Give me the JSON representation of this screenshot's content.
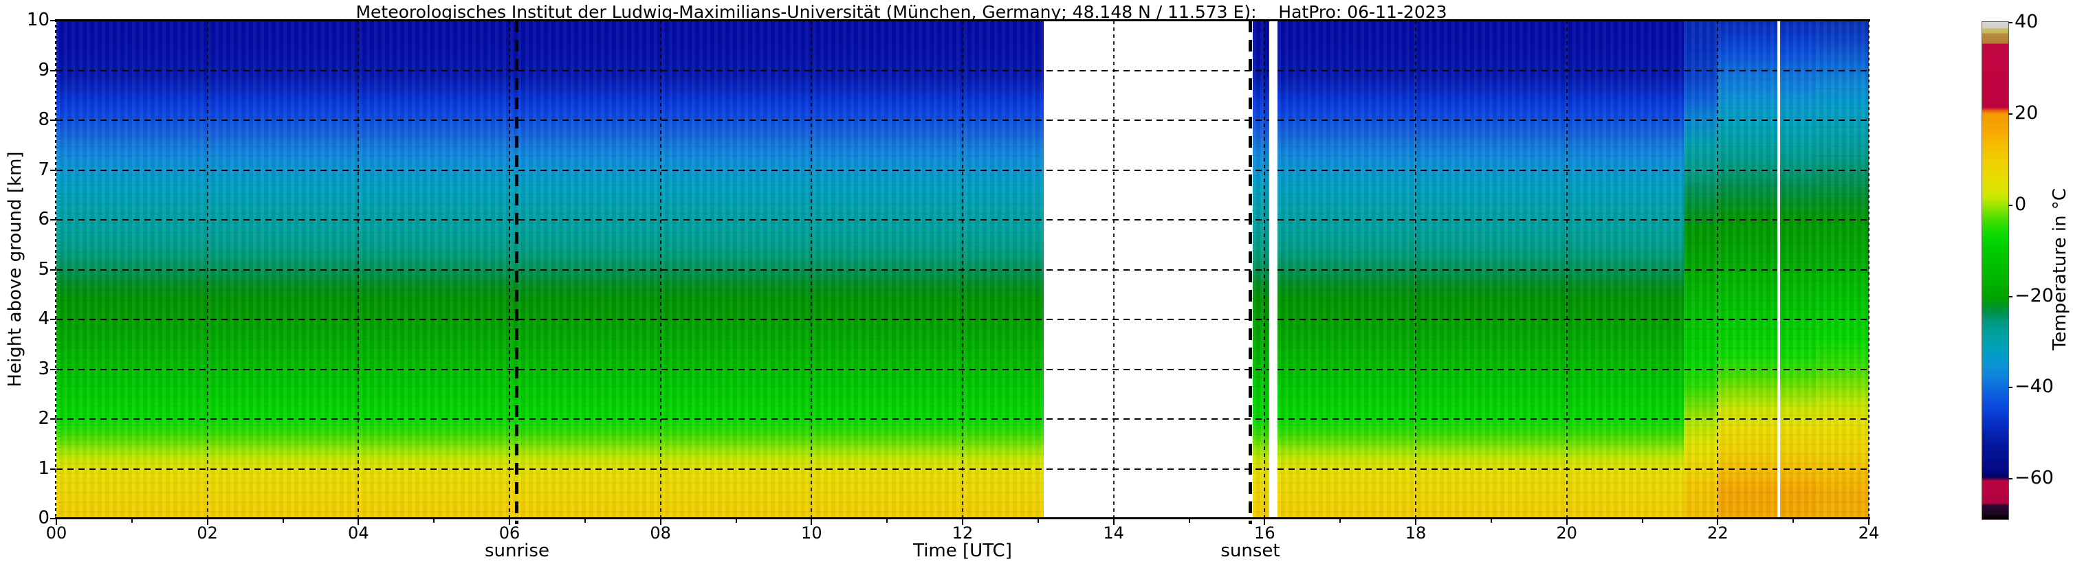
{
  "figure": {
    "title": "Meteorologisches Institut der Ludwig-Maximilians-Universität (München, Germany; 48.148 N / 11.573 E):    HatPro: 06-11-2023"
  },
  "x_axis": {
    "label": "Time [UTC]",
    "tick_labels": [
      "00",
      "02",
      "04",
      "06",
      "08",
      "10",
      "12",
      "14",
      "16",
      "18",
      "20",
      "22",
      "24"
    ],
    "tick_hours": [
      0,
      2,
      4,
      6,
      8,
      10,
      12,
      14,
      16,
      18,
      20,
      22,
      24
    ],
    "minor_tick_hours": [
      1,
      3,
      5,
      7,
      9,
      11,
      13,
      15,
      17,
      19,
      21,
      23
    ],
    "annotations": [
      {
        "label": "sunrise",
        "hour": 6.1
      },
      {
        "label": "sunset",
        "hour": 15.81
      }
    ]
  },
  "y_axis": {
    "label": "Height above ground [km]",
    "tick_labels": [
      "0",
      "1",
      "2",
      "3",
      "4",
      "5",
      "6",
      "7",
      "8",
      "9",
      "10"
    ],
    "tick_km": [
      0,
      1,
      2,
      3,
      4,
      5,
      6,
      7,
      8,
      9,
      10
    ]
  },
  "colorbar": {
    "label": "Temperature in  °C",
    "tick_labels": [
      "40",
      "20",
      "0",
      "−20",
      "−40",
      "−60"
    ],
    "tick_values": [
      40,
      20,
      0,
      -20,
      -40,
      -60
    ],
    "value_range_c": [
      -68.7,
      40.3
    ],
    "stops": [
      [
        40.3,
        "#D5D5D5"
      ],
      [
        39.0,
        "#D0D0CF"
      ],
      [
        38.8,
        "#C9C163"
      ],
      [
        37.9,
        "#C3BA5C"
      ],
      [
        37.7,
        "#BA8B3E"
      ],
      [
        35.7,
        "#B37F36"
      ],
      [
        35.4,
        "#C00742"
      ],
      [
        21.6,
        "#BD0340"
      ],
      [
        20.9,
        "#E85A10"
      ],
      [
        20.2,
        "#F59900"
      ],
      [
        15.5,
        "#F6AC00"
      ],
      [
        14.0,
        "#F5B900"
      ],
      [
        9.5,
        "#F0D000"
      ],
      [
        6.0,
        "#E9DC00"
      ],
      [
        3.5,
        "#DCE400"
      ],
      [
        1.5,
        "#C0E800"
      ],
      [
        -0.5,
        "#8CE300"
      ],
      [
        -2.5,
        "#55DF00"
      ],
      [
        -4.5,
        "#27DC00"
      ],
      [
        -7.0,
        "#05D900"
      ],
      [
        -9.0,
        "#00CE00"
      ],
      [
        -13.0,
        "#00C000"
      ],
      [
        -17.0,
        "#00B000"
      ],
      [
        -20.5,
        "#00A000"
      ],
      [
        -22.0,
        "#009627"
      ],
      [
        -23.5,
        "#00924E"
      ],
      [
        -25.0,
        "#009677"
      ],
      [
        -27.0,
        "#009D93"
      ],
      [
        -29.0,
        "#00A1A6"
      ],
      [
        -31.0,
        "#00A0B8"
      ],
      [
        -33.0,
        "#009CCA"
      ],
      [
        -35.0,
        "#0C92D6"
      ],
      [
        -37.5,
        "#0E82DC"
      ],
      [
        -40.0,
        "#0D6BDE"
      ],
      [
        -42.5,
        "#0B54E0"
      ],
      [
        -45.0,
        "#0941DA"
      ],
      [
        -47.5,
        "#0730C8"
      ],
      [
        -50.0,
        "#0522B0"
      ],
      [
        -53.0,
        "#04169A"
      ],
      [
        -56.0,
        "#030D8C"
      ],
      [
        -58.5,
        "#020780"
      ],
      [
        -59.5,
        "#03045E"
      ],
      [
        -60.3,
        "#BC0441"
      ],
      [
        -65.2,
        "#AF0340"
      ],
      [
        -65.6,
        "#2B0831"
      ],
      [
        -67.5,
        "#1E0624"
      ],
      [
        -68.0,
        "#0A020C"
      ],
      [
        -68.7,
        "#000000"
      ]
    ]
  },
  "chart_data": {
    "type": "heatmap",
    "title": "Meteorologisches Institut der Ludwig-Maximilians-Universität (München, Germany; 48.148 N / 11.573 E):    HatPro: 06-11-2023",
    "xlabel": "Time [UTC]",
    "ylabel": "Height above ground [km]",
    "x_range_hours_utc": [
      0,
      24
    ],
    "y_range_km": [
      0,
      10
    ],
    "color_scale": "Temperature in °C, approx -68 to +40",
    "grid": "dashed black, every 2 h and every 1 km",
    "events": {
      "sunrise_utc": 6.1,
      "sunset_utc": 15.81,
      "missing_data_utc": [
        [
          13.07,
          15.84
        ],
        [
          16.06,
          16.17
        ]
      ],
      "white_marker_line_utc": 22.81
    },
    "columns": [
      {
        "from": 0.0,
        "to": 13.07,
        "profile": "base"
      },
      {
        "from": 15.84,
        "to": 16.06,
        "profile": "base"
      },
      {
        "from": 16.17,
        "to": 21.55,
        "profile": "base"
      },
      {
        "from": 21.55,
        "to": 22.0,
        "profile": "pre_warm"
      },
      {
        "from": 22.0,
        "to": 23.3,
        "profile": "warm"
      },
      {
        "from": 23.3,
        "to": 24.0,
        "profile": "post_warm"
      }
    ],
    "profiles": {
      "base": {
        "description": "Stratified profile 00–13 and 16–21:30 UTC",
        "temps_by_km": [
          [
            0,
            9
          ],
          [
            1,
            6
          ],
          [
            2,
            -4
          ],
          [
            3,
            -9
          ],
          [
            4,
            -15
          ],
          [
            5,
            -22
          ],
          [
            6,
            -28
          ],
          [
            7,
            -33
          ],
          [
            8,
            -42
          ],
          [
            9,
            -50
          ],
          [
            10,
            -52
          ]
        ],
        "stops": [
          [
            0.0,
            "#F2CC00"
          ],
          [
            0.5,
            "#EED500"
          ],
          [
            0.9,
            "#E8DD00"
          ],
          [
            1.15,
            "#D2E500"
          ],
          [
            1.35,
            "#A0E600"
          ],
          [
            1.55,
            "#62DF00"
          ],
          [
            1.75,
            "#2ADD00"
          ],
          [
            2.0,
            "#06DA00"
          ],
          [
            2.5,
            "#00CC00"
          ],
          [
            3.0,
            "#00BD00"
          ],
          [
            3.5,
            "#00AD00"
          ],
          [
            4.0,
            "#009D00"
          ],
          [
            4.4,
            "#009300"
          ],
          [
            4.7,
            "#008D22"
          ],
          [
            5.0,
            "#009355"
          ],
          [
            5.35,
            "#009C82"
          ],
          [
            5.8,
            "#00A09C"
          ],
          [
            6.3,
            "#00A0B0"
          ],
          [
            6.7,
            "#009EC4"
          ],
          [
            7.05,
            "#0A93D3"
          ],
          [
            7.35,
            "#0E85DC"
          ],
          [
            7.6,
            "#156DDA"
          ],
          [
            7.85,
            "#1158DE"
          ],
          [
            8.1,
            "#0B46E0"
          ],
          [
            8.4,
            "#0734D8"
          ],
          [
            8.65,
            "#0524C0"
          ],
          [
            8.9,
            "#0417AE"
          ],
          [
            9.3,
            "#030EA8"
          ],
          [
            10.0,
            "#0309A4"
          ]
        ]
      },
      "pre_warm": {
        "description": "Transition 21:30–22:00 UTC, warming begins",
        "temps_by_km": [
          [
            0,
            12
          ],
          [
            1,
            9
          ],
          [
            2,
            1
          ],
          [
            3,
            -5
          ],
          [
            4,
            -11
          ],
          [
            5,
            -18
          ],
          [
            6,
            -23
          ],
          [
            7,
            -29
          ],
          [
            8,
            -36
          ],
          [
            9,
            -45
          ],
          [
            10,
            -49
          ]
        ],
        "stops": [
          [
            0.0,
            "#F2BC00"
          ],
          [
            0.6,
            "#F1C500"
          ],
          [
            1.1,
            "#EBD800"
          ],
          [
            1.5,
            "#DEE300"
          ],
          [
            1.9,
            "#B3E600"
          ],
          [
            2.3,
            "#6BE000"
          ],
          [
            2.7,
            "#23DC00"
          ],
          [
            3.2,
            "#00D400"
          ],
          [
            3.9,
            "#00C400"
          ],
          [
            4.6,
            "#00B200"
          ],
          [
            5.2,
            "#00A300"
          ],
          [
            5.8,
            "#009700"
          ],
          [
            6.2,
            "#009126"
          ],
          [
            6.6,
            "#009158"
          ],
          [
            7.0,
            "#009B8C"
          ],
          [
            7.5,
            "#00A0AC"
          ],
          [
            8.0,
            "#0887D0"
          ],
          [
            8.45,
            "#0B5CDC"
          ],
          [
            8.9,
            "#0740C6"
          ],
          [
            9.4,
            "#0630C0"
          ],
          [
            10.0,
            "#0528B4"
          ]
        ]
      },
      "warm": {
        "description": "Warm anomaly 22:00–23:20 UTC (orange near ground)",
        "temps_by_km": [
          [
            0,
            15
          ],
          [
            1,
            12
          ],
          [
            2,
            5
          ],
          [
            3,
            -2
          ],
          [
            4,
            -8
          ],
          [
            5,
            -12
          ],
          [
            6,
            -17
          ],
          [
            7,
            -24
          ],
          [
            8,
            -31
          ],
          [
            9,
            -38
          ],
          [
            10,
            -46
          ]
        ],
        "stops": [
          [
            0.0,
            "#F1A600"
          ],
          [
            0.55,
            "#F4A300"
          ],
          [
            0.95,
            "#F3BB00"
          ],
          [
            1.35,
            "#F0CF00"
          ],
          [
            1.8,
            "#EADC00"
          ],
          [
            2.2,
            "#CBE600"
          ],
          [
            2.55,
            "#85E200"
          ],
          [
            2.9,
            "#3CDE00"
          ],
          [
            3.3,
            "#0CDA00"
          ],
          [
            3.8,
            "#00CE00"
          ],
          [
            4.3,
            "#00C100"
          ],
          [
            4.9,
            "#00B100"
          ],
          [
            5.5,
            "#00A100"
          ],
          [
            6.0,
            "#009700"
          ],
          [
            6.35,
            "#009024"
          ],
          [
            6.7,
            "#008F51"
          ],
          [
            7.05,
            "#009880"
          ],
          [
            7.5,
            "#00A0A2"
          ],
          [
            8.0,
            "#009FC0"
          ],
          [
            8.45,
            "#0C8FD6"
          ],
          [
            8.9,
            "#0F72DC"
          ],
          [
            9.35,
            "#0A4EDC"
          ],
          [
            9.7,
            "#0838CC"
          ],
          [
            10.0,
            "#062CBA"
          ]
        ]
      },
      "post_warm": {
        "description": "23:20–24:00 UTC, still warm near ground",
        "temps_by_km": [
          [
            0,
            14
          ],
          [
            1,
            11
          ],
          [
            2,
            3
          ],
          [
            3,
            -3
          ],
          [
            4,
            -9
          ],
          [
            5,
            -14
          ],
          [
            6,
            -19
          ],
          [
            7,
            -26
          ],
          [
            8,
            -33
          ],
          [
            9,
            -41
          ],
          [
            10,
            -47
          ]
        ],
        "stops": [
          [
            0.0,
            "#F1AC00"
          ],
          [
            0.5,
            "#F3AA00"
          ],
          [
            1.0,
            "#F2C200"
          ],
          [
            1.4,
            "#EFD400"
          ],
          [
            1.9,
            "#E7DF00"
          ],
          [
            2.3,
            "#C4E600"
          ],
          [
            2.7,
            "#79E100"
          ],
          [
            3.1,
            "#31DD00"
          ],
          [
            3.6,
            "#04D800"
          ],
          [
            4.2,
            "#00C800"
          ],
          [
            4.8,
            "#00B600"
          ],
          [
            5.4,
            "#00A600"
          ],
          [
            6.0,
            "#009900"
          ],
          [
            6.4,
            "#009026"
          ],
          [
            6.8,
            "#009055"
          ],
          [
            7.2,
            "#009A88"
          ],
          [
            7.7,
            "#00A0A8"
          ],
          [
            8.2,
            "#009EC6"
          ],
          [
            8.7,
            "#0B89D6"
          ],
          [
            9.2,
            "#0D62D8"
          ],
          [
            9.6,
            "#0942C8"
          ],
          [
            10.0,
            "#0630B6"
          ]
        ]
      }
    }
  }
}
